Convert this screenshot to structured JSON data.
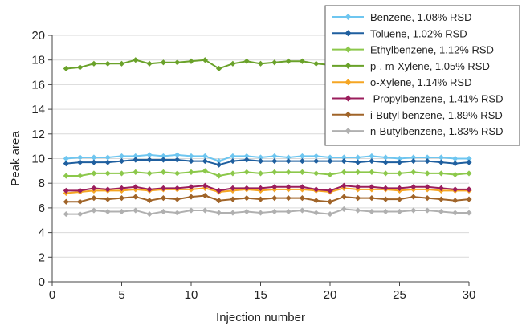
{
  "chart_data": {
    "type": "line",
    "title": "",
    "xlabel": "Injection number",
    "ylabel": "Peak area",
    "xlim": [
      0,
      30
    ],
    "ylim": [
      0,
      20
    ],
    "xticks": [
      "0",
      "5",
      "10",
      "15",
      "20",
      "25",
      "30"
    ],
    "yticks": [
      "0",
      "2",
      "4",
      "6",
      "8",
      "10",
      "12",
      "14",
      "16",
      "18",
      "20"
    ],
    "grid": "horizontal",
    "legend_position": "top-right",
    "x": [
      1,
      2,
      3,
      4,
      5,
      6,
      7,
      8,
      9,
      10,
      11,
      12,
      13,
      14,
      15,
      16,
      17,
      18,
      19,
      20,
      21,
      22,
      23,
      24,
      25,
      26,
      27,
      28,
      29,
      30
    ],
    "series": [
      {
        "name": "Benzene, 1.08% RSD",
        "color": "#6ec6f0",
        "marker": "diamond",
        "values": [
          10.0,
          10.1,
          10.1,
          10.1,
          10.2,
          10.2,
          10.3,
          10.2,
          10.3,
          10.2,
          10.2,
          9.8,
          10.2,
          10.2,
          10.1,
          10.2,
          10.1,
          10.2,
          10.2,
          10.1,
          10.1,
          10.1,
          10.2,
          10.1,
          10.0,
          10.1,
          10.1,
          10.1,
          10.0,
          10.0
        ]
      },
      {
        "name": "Toluene, 1.02% RSD",
        "color": "#1f5f9f",
        "marker": "diamond",
        "values": [
          9.6,
          9.7,
          9.7,
          9.7,
          9.8,
          9.9,
          9.9,
          9.9,
          9.9,
          9.8,
          9.8,
          9.5,
          9.8,
          9.9,
          9.8,
          9.8,
          9.8,
          9.8,
          9.8,
          9.8,
          9.8,
          9.7,
          9.8,
          9.7,
          9.7,
          9.8,
          9.8,
          9.7,
          9.6,
          9.7
        ]
      },
      {
        "name": "Ethylbenzene, 1.12% RSD",
        "color": "#8cc84b",
        "marker": "diamond",
        "values": [
          8.6,
          8.6,
          8.8,
          8.8,
          8.8,
          8.9,
          8.8,
          8.9,
          8.8,
          8.9,
          9.0,
          8.6,
          8.8,
          8.9,
          8.8,
          8.9,
          8.9,
          8.9,
          8.8,
          8.7,
          8.9,
          8.9,
          8.9,
          8.8,
          8.8,
          8.9,
          8.8,
          8.8,
          8.7,
          8.8
        ]
      },
      {
        "name": "p-, m-Xylene, 1.05% RSD",
        "color": "#6aa22a",
        "marker": "diamond",
        "values": [
          17.3,
          17.4,
          17.7,
          17.7,
          17.7,
          18.0,
          17.7,
          17.8,
          17.8,
          17.9,
          18.0,
          17.3,
          17.7,
          17.9,
          17.7,
          17.8,
          17.9,
          17.9,
          17.7,
          17.6,
          17.7,
          17.8,
          17.8,
          17.7,
          17.7,
          17.8,
          17.8,
          17.7,
          17.6,
          17.7
        ]
      },
      {
        "name": "o-Xylene, 1.14% RSD",
        "color": "#f5a623",
        "marker": "diamond",
        "values": [
          7.2,
          7.3,
          7.4,
          7.4,
          7.4,
          7.5,
          7.4,
          7.5,
          7.5,
          7.5,
          7.6,
          7.3,
          7.4,
          7.5,
          7.4,
          7.5,
          7.5,
          7.5,
          7.4,
          7.3,
          7.6,
          7.5,
          7.5,
          7.5,
          7.4,
          7.5,
          7.5,
          7.4,
          7.4,
          7.4
        ]
      },
      {
        "name": " Propylbenzene, 1.41% RSD",
        "color": "#9b1d5c",
        "marker": "diamond",
        "values": [
          7.4,
          7.4,
          7.6,
          7.5,
          7.6,
          7.7,
          7.5,
          7.6,
          7.6,
          7.7,
          7.8,
          7.4,
          7.6,
          7.6,
          7.6,
          7.7,
          7.7,
          7.7,
          7.5,
          7.4,
          7.8,
          7.7,
          7.7,
          7.6,
          7.6,
          7.7,
          7.7,
          7.6,
          7.5,
          7.5
        ]
      },
      {
        "name": "i-Butyl benzene, 1.89% RSD",
        "color": "#a06428",
        "marker": "diamond",
        "values": [
          6.5,
          6.5,
          6.8,
          6.7,
          6.8,
          6.9,
          6.6,
          6.8,
          6.7,
          6.9,
          7.0,
          6.6,
          6.7,
          6.8,
          6.7,
          6.8,
          6.8,
          6.8,
          6.6,
          6.5,
          6.9,
          6.8,
          6.8,
          6.7,
          6.7,
          6.9,
          6.8,
          6.7,
          6.6,
          6.7
        ]
      },
      {
        "name": "n-Butylbenzene, 1.83% RSD",
        "color": "#b0b0b0",
        "marker": "diamond",
        "values": [
          5.5,
          5.5,
          5.8,
          5.7,
          5.7,
          5.8,
          5.5,
          5.7,
          5.6,
          5.8,
          5.8,
          5.6,
          5.6,
          5.7,
          5.6,
          5.7,
          5.7,
          5.8,
          5.6,
          5.5,
          5.9,
          5.8,
          5.7,
          5.7,
          5.7,
          5.8,
          5.8,
          5.7,
          5.6,
          5.6
        ]
      }
    ]
  }
}
